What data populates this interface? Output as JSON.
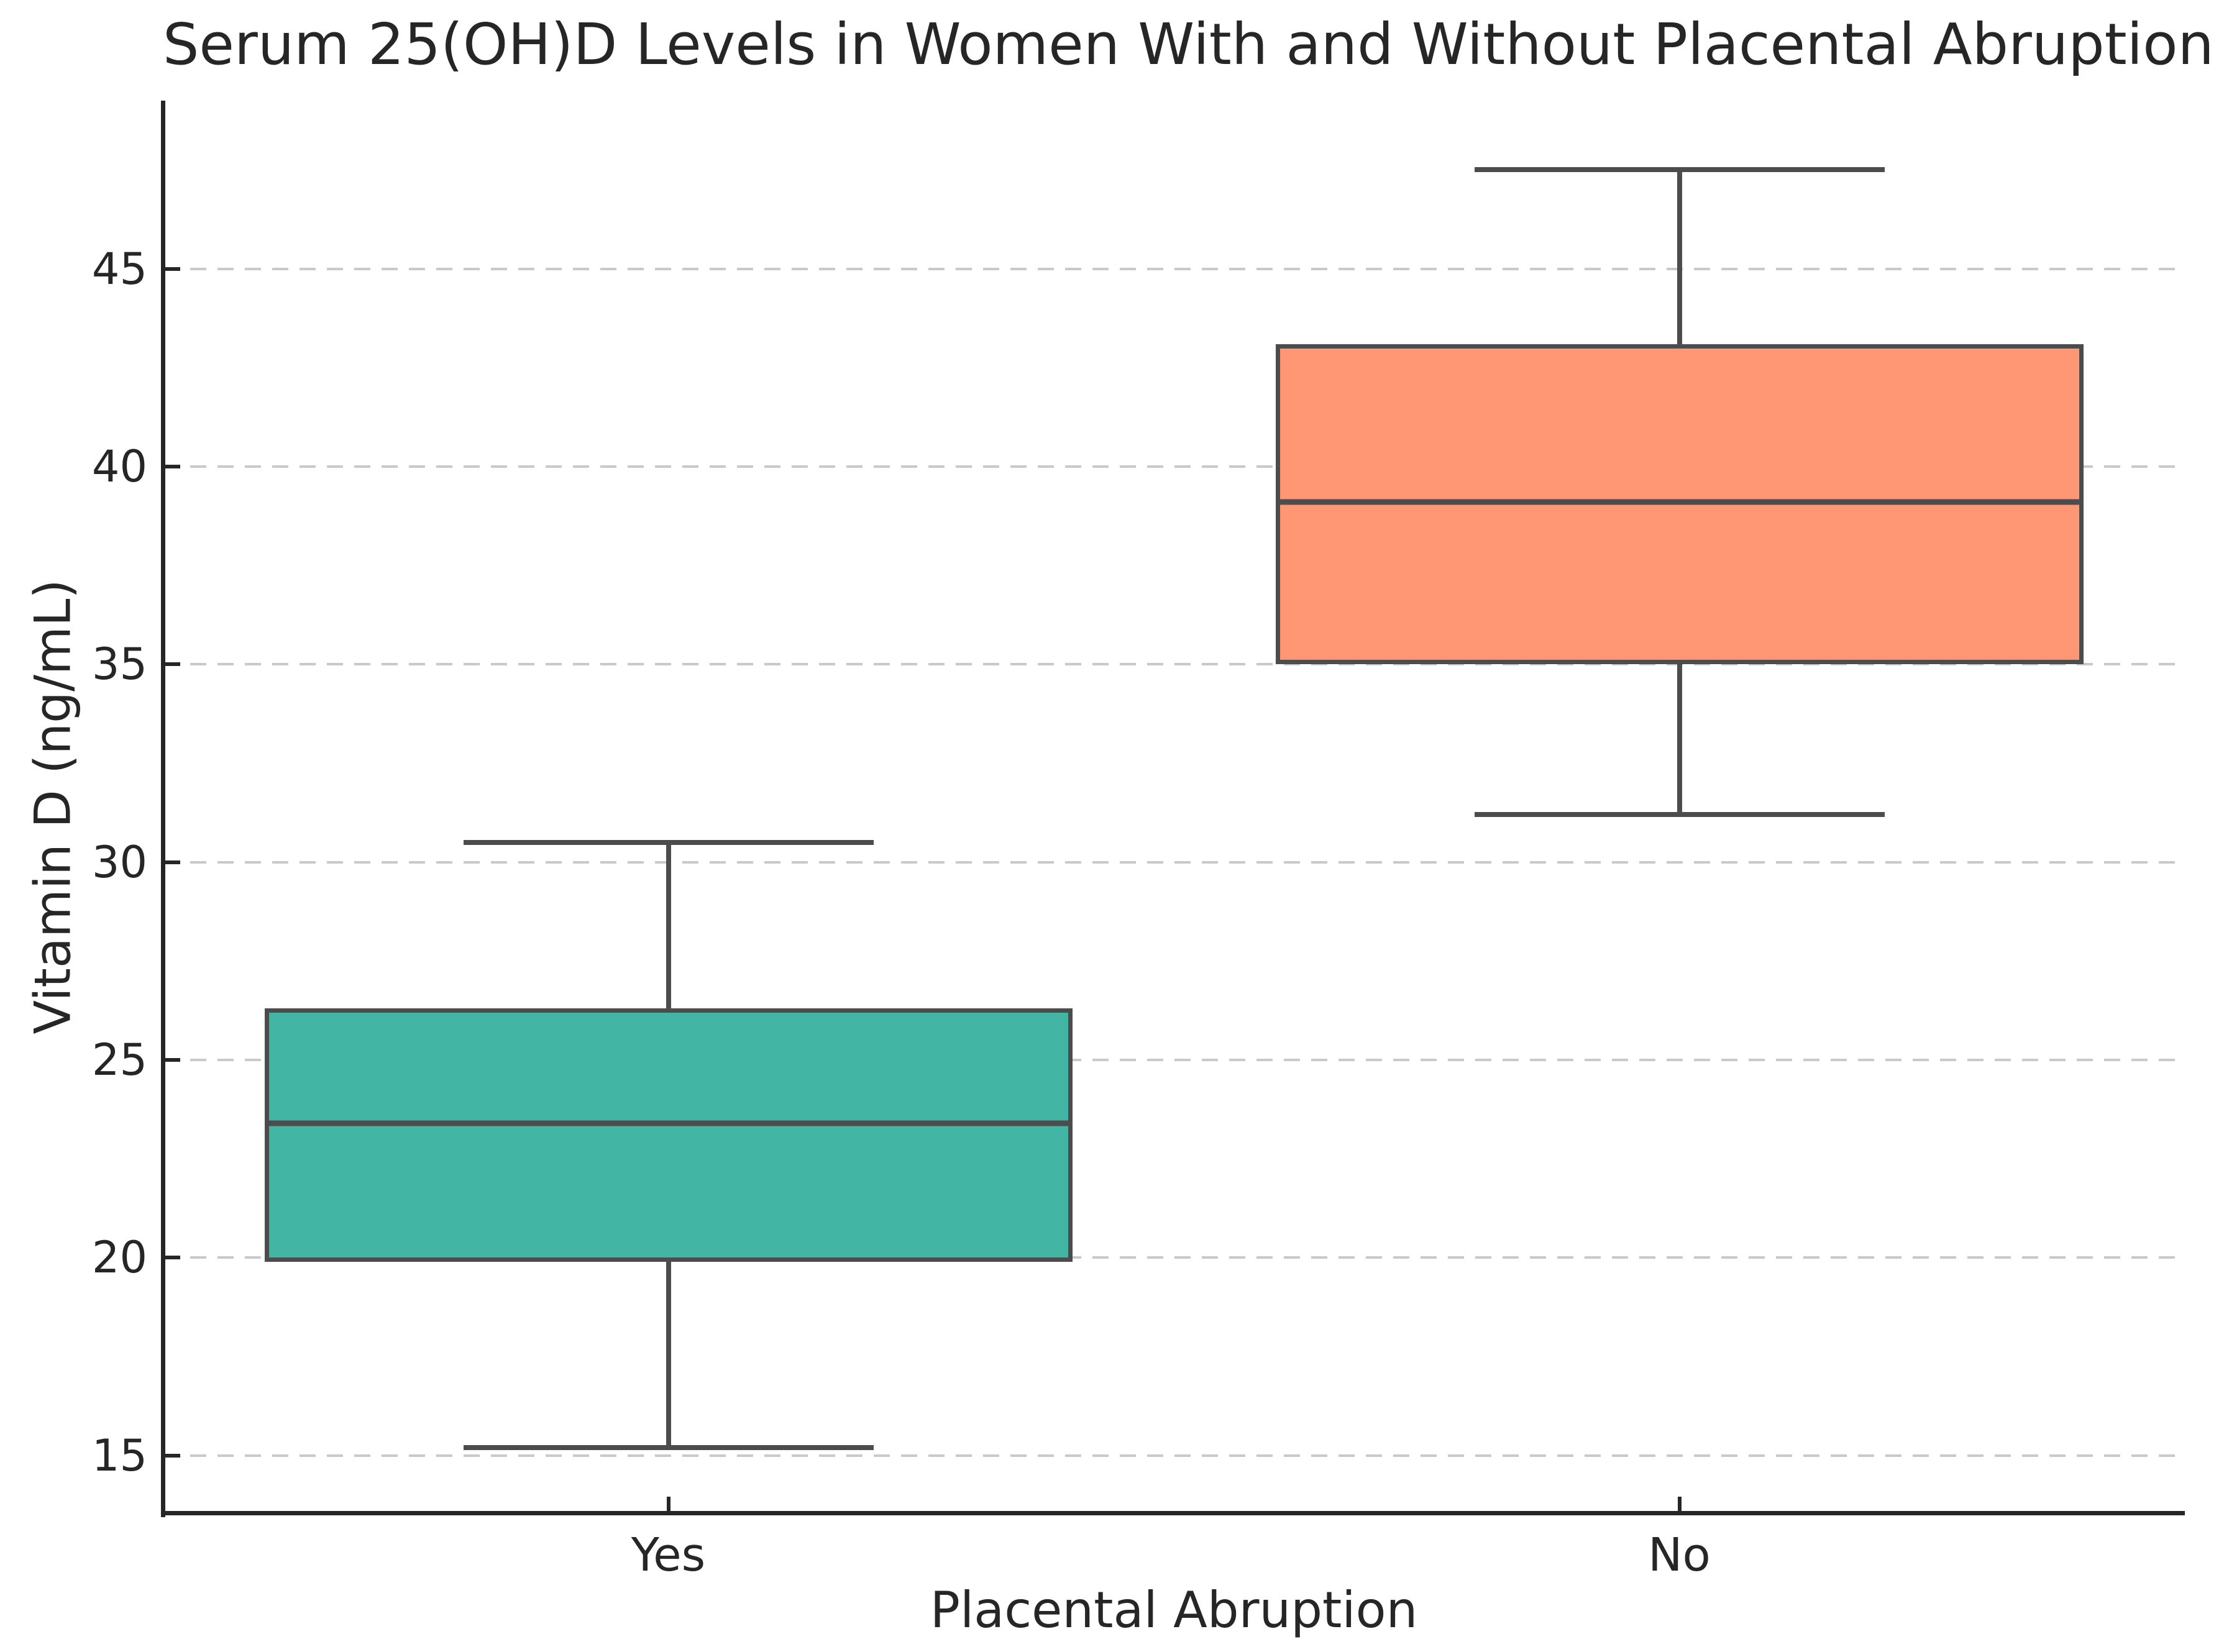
{
  "chart_data": {
    "type": "box",
    "title": "Serum 25(OH)D Levels in Women With and Without Placental Abruption",
    "xlabel": "Placental Abruption",
    "ylabel": "Vitamin D (ng/mL)",
    "categories": [
      "Yes",
      "No"
    ],
    "series": [
      {
        "name": "Yes",
        "whisker_low": 15.2,
        "q1": 19.9,
        "median": 23.4,
        "q3": 26.3,
        "whisker_high": 30.5,
        "fill_color": "#42B5A4"
      },
      {
        "name": "No",
        "whisker_low": 31.2,
        "q1": 35.0,
        "median": 39.1,
        "q3": 43.1,
        "whisker_high": 47.5,
        "fill_color": "#FF9674"
      }
    ],
    "ylim": [
      13.55,
      49.25
    ],
    "yticks": [
      15,
      20,
      25,
      30,
      35,
      40,
      45
    ],
    "grid": "horizontal-dashed",
    "legend": "none",
    "colors": {
      "box_edge": "#4C4C4C",
      "gridline": "#C9C9C9",
      "text": "#262626",
      "spine": "#262626",
      "background": "#FFFFFF"
    }
  }
}
